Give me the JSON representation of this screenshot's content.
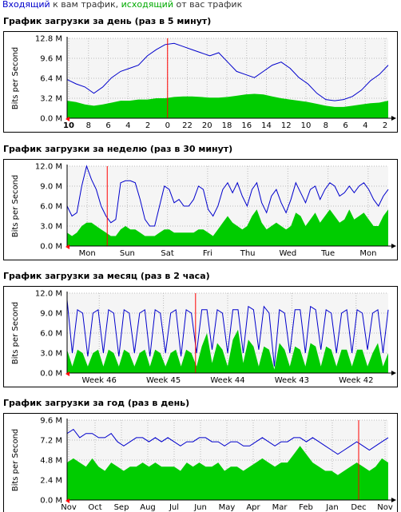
{
  "legend": {
    "in_label": "Входящий",
    "in_text": " к вам трафик, ",
    "out_label": "исходящий",
    "out_text": " от вас трафик",
    "in_color": "#0000cc",
    "out_color": "#00cc00"
  },
  "chart_data": [
    {
      "type": "area",
      "title": "График загрузки за день (раз в 5 минут)",
      "ylabel": "Bits per Second",
      "ylim": [
        0,
        12.8
      ],
      "unit": "M",
      "y_ticks": [
        "0.0 M",
        "3.2 M",
        "6.4 M",
        "9.6 M",
        "12.8 M"
      ],
      "x_ticks": [
        "10",
        "8",
        "6",
        "4",
        "2",
        "0",
        "22",
        "20",
        "18",
        "16",
        "14",
        "12",
        "10",
        "8",
        "6",
        "4",
        "2"
      ],
      "marker_index": 5,
      "series": [
        {
          "name": "Входящий",
          "values": [
            6.2,
            5.5,
            5.0,
            4.0,
            5.0,
            6.5,
            7.5,
            8.0,
            8.5,
            10.0,
            11.0,
            11.8,
            12.0,
            11.5,
            11.0,
            10.5,
            10.0,
            10.5,
            9.0,
            7.5,
            7.0,
            6.5,
            7.5,
            8.5,
            9.0,
            8.0,
            6.5,
            5.5,
            4.0,
            3.0,
            2.8,
            3.0,
            3.5,
            4.5,
            6.0,
            7.0,
            8.5
          ]
        },
        {
          "name": "исходящий",
          "values": [
            2.8,
            2.6,
            2.2,
            2.0,
            2.2,
            2.5,
            2.8,
            2.8,
            3.0,
            3.0,
            3.2,
            3.2,
            3.4,
            3.5,
            3.5,
            3.4,
            3.3,
            3.3,
            3.4,
            3.6,
            3.8,
            3.9,
            3.8,
            3.5,
            3.2,
            3.0,
            2.8,
            2.6,
            2.3,
            2.0,
            1.8,
            1.8,
            2.0,
            2.2,
            2.4,
            2.5,
            2.8
          ]
        }
      ]
    },
    {
      "type": "area",
      "title": "График загрузки за неделю (раз в 30 минут)",
      "ylabel": "Bits per Second",
      "ylim": [
        0,
        12.0
      ],
      "unit": "M",
      "y_ticks": [
        "0.0 M",
        "3.0 M",
        "6.0 M",
        "9.0 M",
        "12.0 M"
      ],
      "x_ticks": [
        "Mon",
        "Sun",
        "Sat",
        "Fri",
        "Thu",
        "Wed",
        "Tue",
        "Mon"
      ],
      "marker_index": 1,
      "series": [
        {
          "name": "Входящий",
          "values": [
            6.0,
            4.5,
            5.0,
            9.0,
            12.0,
            10.0,
            8.5,
            6.0,
            4.5,
            3.5,
            4.0,
            9.5,
            9.8,
            9.8,
            9.5,
            7.0,
            4.0,
            3.0,
            3.0,
            6.0,
            9.0,
            8.5,
            6.5,
            7.0,
            6.0,
            6.0,
            7.0,
            9.0,
            8.5,
            5.5,
            4.5,
            6.0,
            8.5,
            9.5,
            8.0,
            9.5,
            7.5,
            6.0,
            8.5,
            9.5,
            6.5,
            5.0,
            7.5,
            8.5,
            6.5,
            5.0,
            7.0,
            9.5,
            8.0,
            6.5,
            8.5,
            9.0,
            7.0,
            8.5,
            9.5,
            9.0,
            7.5,
            8.0,
            9.0,
            8.0,
            9.0,
            9.5,
            8.5,
            7.0,
            6.0,
            7.5,
            8.5
          ]
        },
        {
          "name": "исходящий",
          "values": [
            2.0,
            1.5,
            2.0,
            3.0,
            3.5,
            3.5,
            3.0,
            2.5,
            2.0,
            1.5,
            1.5,
            2.5,
            3.0,
            2.5,
            2.5,
            2.0,
            1.5,
            1.5,
            1.5,
            2.0,
            2.5,
            2.5,
            2.0,
            2.0,
            2.0,
            2.0,
            2.0,
            2.5,
            2.5,
            2.0,
            1.5,
            2.5,
            3.5,
            4.5,
            3.5,
            3.0,
            2.5,
            3.0,
            4.5,
            5.5,
            3.5,
            2.5,
            3.0,
            3.5,
            3.0,
            2.5,
            3.0,
            5.0,
            4.5,
            3.0,
            4.0,
            5.0,
            3.5,
            4.5,
            5.5,
            4.5,
            3.5,
            4.0,
            5.5,
            4.0,
            4.5,
            5.0,
            4.0,
            3.0,
            3.0,
            4.5,
            5.5
          ]
        }
      ]
    },
    {
      "type": "area",
      "title": "График загрузки за месяц (раз в 2 часа)",
      "ylabel": "Bits per Second",
      "ylim": [
        0,
        12.0
      ],
      "unit": "M",
      "y_ticks": [
        "0.0 M",
        "3.0 M",
        "6.0 M",
        "9.0 M",
        "12.0 M"
      ],
      "x_ticks": [
        "Week 46",
        "Week 45",
        "Week 44",
        "Week 43",
        "Week 42"
      ],
      "marker_index": 2,
      "series": [
        {
          "name": "Входящий",
          "values": [
            11.0,
            3.0,
            9.5,
            9.0,
            2.5,
            9.0,
            9.5,
            3.0,
            9.5,
            9.0,
            2.5,
            9.5,
            9.0,
            3.0,
            9.0,
            9.5,
            2.5,
            9.5,
            9.0,
            3.0,
            9.0,
            9.5,
            2.5,
            9.5,
            9.0,
            3.0,
            9.5,
            9.5,
            3.5,
            9.5,
            9.0,
            3.0,
            9.5,
            9.5,
            3.0,
            10.0,
            9.5,
            3.5,
            10.0,
            9.0,
            1.0,
            9.5,
            9.0,
            3.0,
            9.5,
            9.5,
            3.0,
            10.0,
            9.5,
            3.5,
            9.5,
            9.0,
            3.0,
            9.0,
            9.5,
            3.0,
            9.5,
            9.0,
            3.5,
            9.0,
            9.5,
            3.0,
            9.5
          ]
        },
        {
          "name": "исходящий",
          "values": [
            3.5,
            1.0,
            3.5,
            3.0,
            1.0,
            3.0,
            3.5,
            1.0,
            3.5,
            3.0,
            1.0,
            3.5,
            3.0,
            1.0,
            3.0,
            3.5,
            1.0,
            3.5,
            3.0,
            1.0,
            3.0,
            3.5,
            1.0,
            3.5,
            3.0,
            1.0,
            4.0,
            6.0,
            1.5,
            4.5,
            3.5,
            1.0,
            5.0,
            6.5,
            1.5,
            5.0,
            4.0,
            1.0,
            4.0,
            3.5,
            0.5,
            4.5,
            3.5,
            1.0,
            4.0,
            3.5,
            1.0,
            4.5,
            4.0,
            1.0,
            4.0,
            3.5,
            1.0,
            3.5,
            3.5,
            1.0,
            3.5,
            3.5,
            1.0,
            3.0,
            4.5,
            1.0,
            3.0
          ]
        }
      ]
    },
    {
      "type": "area",
      "title": "График загрузки за год (раз в день)",
      "ylabel": "Bits per Second",
      "ylim": [
        0,
        9.6
      ],
      "unit": "M",
      "y_ticks": [
        "0.0 M",
        "2.4 M",
        "4.8 M",
        "7.2 M",
        "9.6 M"
      ],
      "x_ticks": [
        "Nov",
        "Oct",
        "Sep",
        "Aug",
        "Jul",
        "Jun",
        "May",
        "Apr",
        "Mar",
        "Feb",
        "Jan",
        "Dec",
        "Nov"
      ],
      "marker_index": 11,
      "series": [
        {
          "name": "Входящий",
          "values": [
            8.0,
            8.5,
            7.5,
            8.0,
            8.0,
            7.5,
            7.5,
            8.0,
            7.0,
            6.5,
            7.0,
            7.5,
            7.5,
            7.0,
            7.5,
            7.0,
            7.5,
            7.0,
            6.5,
            7.0,
            7.0,
            7.5,
            7.5,
            7.0,
            7.0,
            6.5,
            7.0,
            7.0,
            6.5,
            6.5,
            7.0,
            7.5,
            7.0,
            6.5,
            7.0,
            7.0,
            7.5,
            7.5,
            7.0,
            7.5,
            7.0,
            6.5,
            6.0,
            5.5,
            6.0,
            6.5,
            7.0,
            6.5,
            6.0,
            6.5,
            7.0,
            7.5
          ]
        },
        {
          "name": "исходящий",
          "values": [
            4.5,
            5.0,
            4.5,
            4.0,
            5.0,
            4.0,
            3.5,
            4.5,
            4.0,
            3.5,
            4.0,
            4.0,
            4.5,
            4.0,
            4.5,
            4.0,
            4.0,
            4.0,
            3.5,
            4.5,
            4.0,
            4.5,
            4.0,
            4.0,
            4.5,
            3.5,
            4.0,
            4.0,
            3.5,
            4.0,
            4.5,
            5.0,
            4.5,
            4.0,
            4.5,
            4.5,
            5.5,
            6.5,
            5.5,
            4.5,
            4.0,
            3.5,
            3.5,
            3.0,
            3.5,
            4.0,
            4.5,
            4.0,
            3.5,
            4.0,
            5.0,
            4.5
          ]
        }
      ]
    }
  ]
}
